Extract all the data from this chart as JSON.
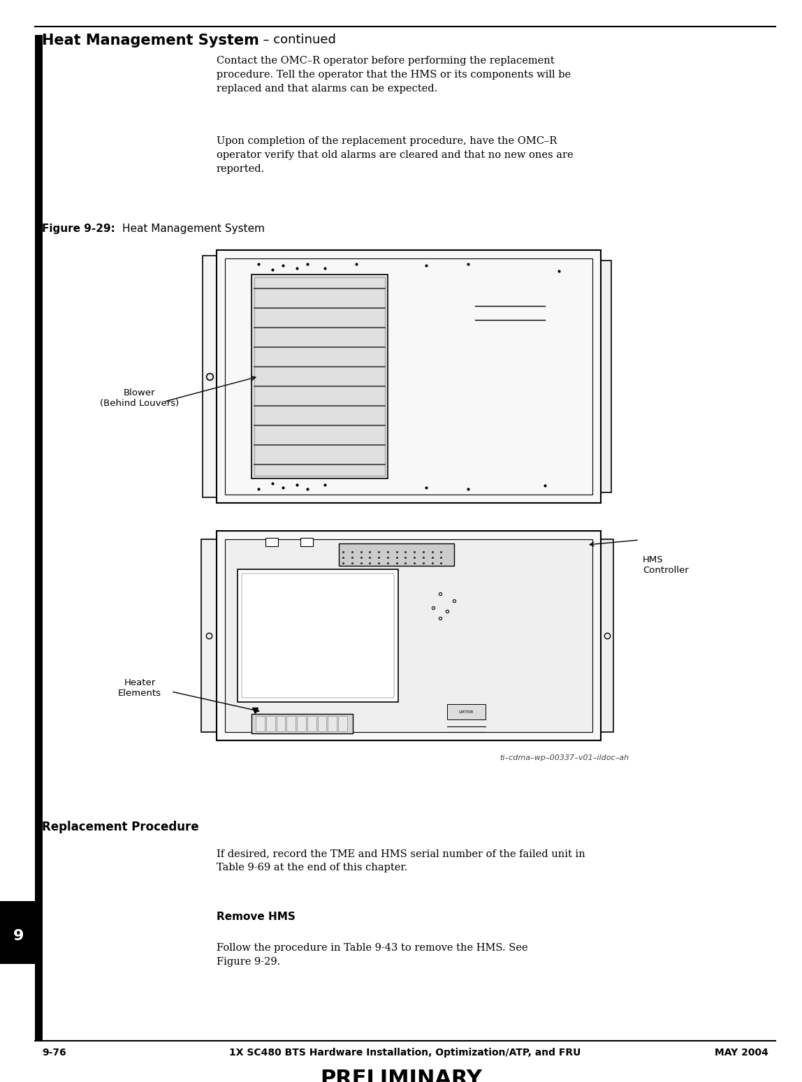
{
  "page_width": 11.48,
  "page_height": 15.49,
  "bg_color": "#ffffff",
  "header_title_bold": "Heat Management System",
  "header_title_normal": "  – continued",
  "para1": "Contact the OMC–R operator before performing the replacement\nprocedure. Tell the operator that the HMS or its components will be\nreplaced and that alarms can be expected.",
  "para2": "Upon completion of the replacement procedure, have the OMC–R\noperator verify that old alarms are cleared and that no new ones are\nreported.",
  "figure_label_bold": "Figure 9-29:",
  "figure_label_normal": "Heat Management System",
  "blower_label": "Blower\n(Behind Louvers)",
  "hms_label": "HMS\nController",
  "heater_label": "Heater\nElements",
  "figure_id": "ti–cdma–wp–00337–v01–ildoc–ah",
  "section_replacement": "Replacement Procedure",
  "para_replacement": "If desired, record the TME and HMS serial number of the failed unit in\nTable 9-69 at the end of this chapter.",
  "section_remove": "Remove HMS",
  "para_remove": "Follow the procedure in Table 9-43 to remove the HMS. See\nFigure 9-29.",
  "footer_left": "9-76",
  "footer_center": "1X SC480 BTS Hardware Installation, Optimization/ATP, and FRU",
  "footer_right": "MAY 2004",
  "footer_prelim": "PRELIMINARY",
  "chapter_num": "9",
  "text_color": "#000000"
}
